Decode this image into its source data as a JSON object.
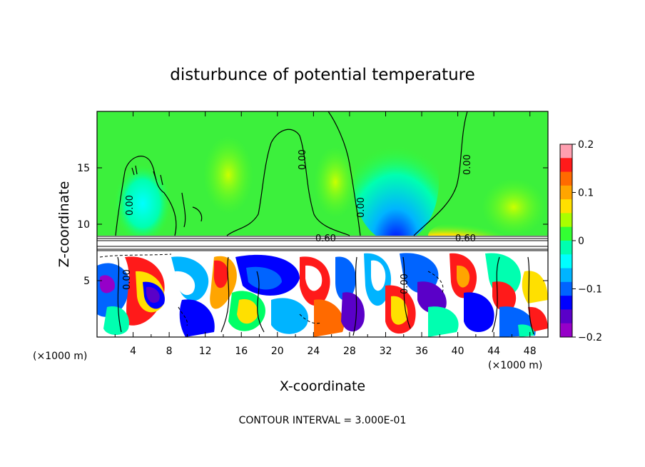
{
  "chart_data": {
    "type": "heatmap",
    "title": "disturbunce of potential temperature",
    "xlabel": "X-coordinate",
    "ylabel": "Z-coordinate",
    "x_unit_label_left": "(×1000 m)",
    "x_unit_label_right": "(×1000 m)",
    "xlim": [
      0,
      50
    ],
    "ylim": [
      0,
      20
    ],
    "xticks": [
      "4",
      "8",
      "12",
      "16",
      "20",
      "24",
      "28",
      "32",
      "36",
      "40",
      "44",
      "48"
    ],
    "yticks": [
      "5",
      "10",
      "15"
    ],
    "colorbar": {
      "range": [
        -0.2,
        0.2
      ],
      "tick_labels": [
        "0.2",
        "0.1",
        "0",
        "−0.1",
        "−0.2"
      ],
      "colors": [
        "#ff9fb0",
        "#ff1a1a",
        "#ff6a00",
        "#ffa500",
        "#ffe000",
        "#aaff00",
        "#33ff33",
        "#00ffb0",
        "#00ffff",
        "#00b4ff",
        "#0064ff",
        "#0000ff",
        "#5a00c8",
        "#9600c8"
      ]
    },
    "contour_labels": [
      "0.00",
      "0.00",
      "0.00",
      "0.00",
      "0.00",
      "0.00",
      "0.60",
      "0.60"
    ],
    "footer": "CONTOUR INTERVAL = 3.000E-01"
  }
}
